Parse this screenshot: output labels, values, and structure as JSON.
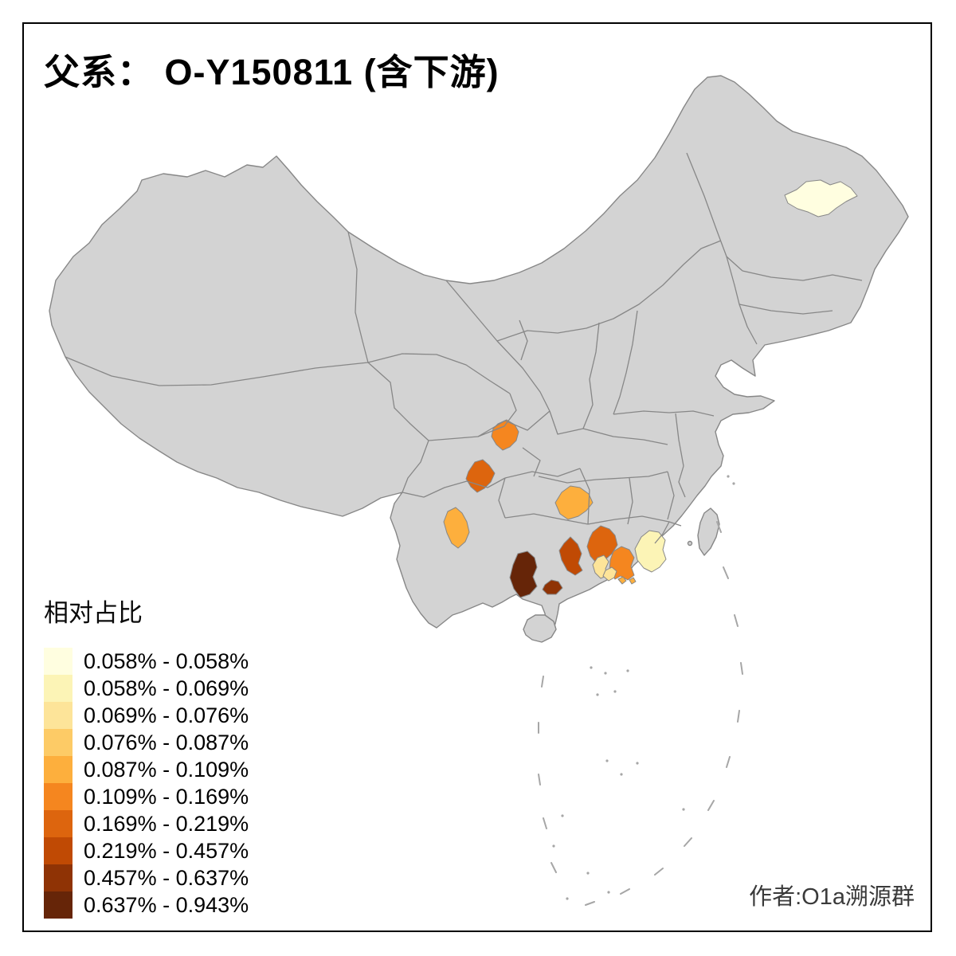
{
  "title": "父系： O-Y150811 (含下游)",
  "attribution": "作者:O1a溯源群",
  "legend": {
    "title": "相对占比",
    "items": [
      {
        "label": "0.058% - 0.058%",
        "color": "#FFFEE0"
      },
      {
        "label": "0.058% - 0.069%",
        "color": "#FCF4B6"
      },
      {
        "label": "0.069% - 0.076%",
        "color": "#FDE499"
      },
      {
        "label": "0.076% - 0.087%",
        "color": "#FDCB66"
      },
      {
        "label": "0.087% - 0.109%",
        "color": "#FDAF3D"
      },
      {
        "label": "0.109% - 0.169%",
        "color": "#F5861F"
      },
      {
        "label": "0.169% - 0.219%",
        "color": "#DD650E"
      },
      {
        "label": "0.219% - 0.457%",
        "color": "#C04A04"
      },
      {
        "label": "0.457% - 0.637%",
        "color": "#8F3305"
      },
      {
        "label": "0.637% - 0.943%",
        "color": "#662508"
      }
    ]
  },
  "map": {
    "land_color": "#D3D3D3",
    "border_color": "#878787",
    "background_color": "#FFFFFF",
    "frame_color": "#000000",
    "regions": [
      {
        "id": "northeast-pale",
        "class_index": 0
      },
      {
        "id": "sichuan-north",
        "class_index": 5
      },
      {
        "id": "sichuan-west",
        "class_index": 6
      },
      {
        "id": "yunnan-central",
        "class_index": 4
      },
      {
        "id": "guizhou-central",
        "class_index": 4
      },
      {
        "id": "guangxi-southwest",
        "class_index": 9
      },
      {
        "id": "guangxi-south-coast",
        "class_index": 8
      },
      {
        "id": "guangxi-central",
        "class_index": 7
      },
      {
        "id": "guangxi-east",
        "class_index": 6
      },
      {
        "id": "guangxi-southeast-pale",
        "class_index": 2
      },
      {
        "id": "guangdong-west",
        "class_index": 5
      },
      {
        "id": "guangdong-east-pale",
        "class_index": 1
      },
      {
        "id": "pearl-delta-pale",
        "class_index": 2
      },
      {
        "id": "pearl-delta-dot-a",
        "class_index": 4
      },
      {
        "id": "pearl-delta-dot-b",
        "class_index": 4
      }
    ]
  }
}
